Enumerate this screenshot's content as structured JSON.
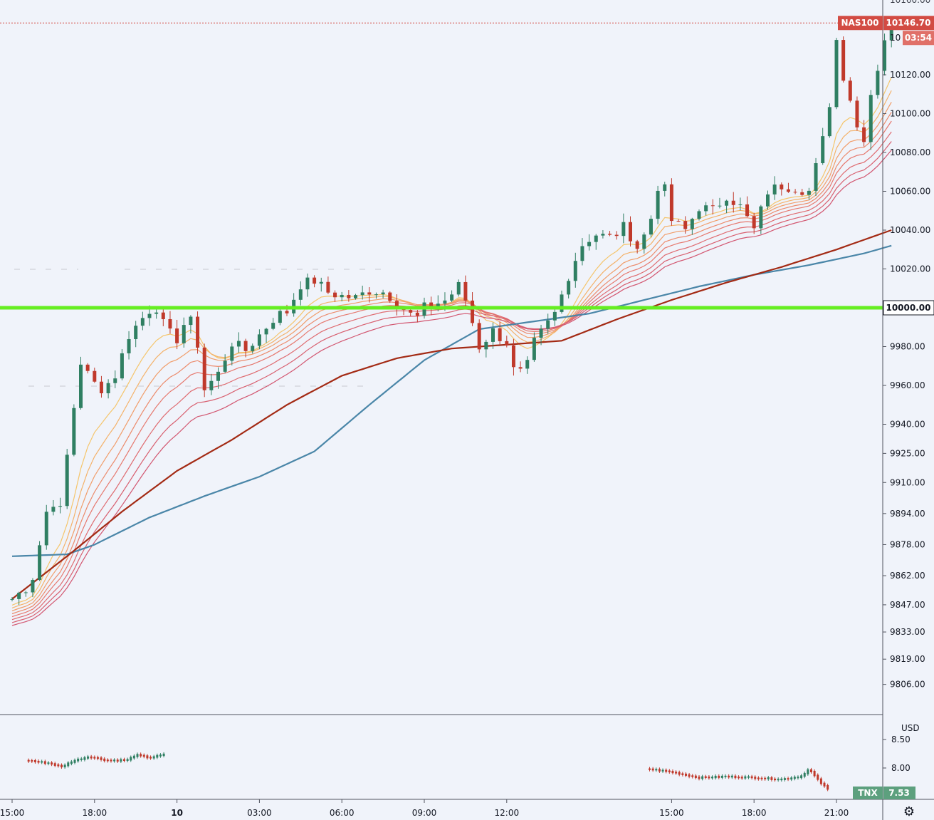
{
  "chart_data": [
    {
      "type": "candlestick",
      "symbol": "NAS100",
      "last_price": "10146.70",
      "countdown": "03:54",
      "price_ticks": [
        "10120.00",
        "10100.00",
        "10080.00",
        "10060.00",
        "10040.00",
        "10020.00",
        "10000.00",
        "9980.00",
        "9960.00",
        "9940.00",
        "9925.00",
        "9910.00",
        "9894.00",
        "9878.00",
        "9862.00",
        "9847.00",
        "9833.00",
        "9819.00",
        "9806.00"
      ],
      "price_tick_values": [
        10120,
        10100,
        10080,
        10060,
        10040,
        10020,
        10000,
        9980,
        9960,
        9940,
        9925,
        9910,
        9894,
        9878,
        9862,
        9847,
        9833,
        9819,
        9806
      ],
      "highlight_tag": "10000.00",
      "highlight_level": 10000,
      "partial_top_label": "10",
      "time_ticks": [
        "15:00",
        "18:00",
        "10",
        "03:00",
        "06:00",
        "09:00",
        "12:00",
        "15:00",
        "18:00",
        "21:00"
      ],
      "time_tick_hours": [
        0,
        3,
        6,
        9,
        12,
        15,
        18,
        24,
        27,
        30
      ],
      "key_prices": [
        {
          "h": 0,
          "p": 9850
        },
        {
          "h": 0.7,
          "p": 9858
        },
        {
          "h": 1,
          "p": 9878
        },
        {
          "h": 1.4,
          "p": 9905
        },
        {
          "h": 1.7,
          "p": 9890
        },
        {
          "h": 2.1,
          "p": 9935
        },
        {
          "h": 2.5,
          "p": 9972
        },
        {
          "h": 2.9,
          "p": 9962
        },
        {
          "h": 3.3,
          "p": 9958
        },
        {
          "h": 3.8,
          "p": 9966
        },
        {
          "h": 4.2,
          "p": 9985
        },
        {
          "h": 4.7,
          "p": 9994
        },
        {
          "h": 5.2,
          "p": 10002
        },
        {
          "h": 5.6,
          "p": 9988
        },
        {
          "h": 6.0,
          "p": 9984
        },
        {
          "h": 6.4,
          "p": 9996
        },
        {
          "h": 6.7,
          "p": 9986
        },
        {
          "h": 7.0,
          "p": 9958
        },
        {
          "h": 7.5,
          "p": 9966
        },
        {
          "h": 8.0,
          "p": 9982
        },
        {
          "h": 8.5,
          "p": 9978
        },
        {
          "h": 9.0,
          "p": 9986
        },
        {
          "h": 9.6,
          "p": 9996
        },
        {
          "h": 10.0,
          "p": 9998
        },
        {
          "h": 10.5,
          "p": 10012
        },
        {
          "h": 11.0,
          "p": 10014
        },
        {
          "h": 11.5,
          "p": 10008
        },
        {
          "h": 12.0,
          "p": 10006
        },
        {
          "h": 12.5,
          "p": 10005
        },
        {
          "h": 13.0,
          "p": 10009
        },
        {
          "h": 13.6,
          "p": 10008
        },
        {
          "h": 14.2,
          "p": 10000
        },
        {
          "h": 14.7,
          "p": 9994
        },
        {
          "h": 15.0,
          "p": 10000
        },
        {
          "h": 15.8,
          "p": 10004
        },
        {
          "h": 16.3,
          "p": 10012
        },
        {
          "h": 16.6,
          "p": 10000
        },
        {
          "h": 17.0,
          "p": 9980
        },
        {
          "h": 17.5,
          "p": 9988
        },
        {
          "h": 18.0,
          "p": 9982
        },
        {
          "h": 18.3,
          "p": 9965
        },
        {
          "h": 18.7,
          "p": 9968
        },
        {
          "h": 19.0,
          "p": 9982
        },
        {
          "h": 19.4,
          "p": 9990
        },
        {
          "h": 19.8,
          "p": 9998
        },
        {
          "h": 20.2,
          "p": 10015
        },
        {
          "h": 20.7,
          "p": 10032
        },
        {
          "h": 21.2,
          "p": 10038
        },
        {
          "h": 21.8,
          "p": 10036
        },
        {
          "h": 22.3,
          "p": 10042
        },
        {
          "h": 22.8,
          "p": 10030
        },
        {
          "h": 23.3,
          "p": 10048
        },
        {
          "h": 23.6,
          "p": 10070
        },
        {
          "h": 24.0,
          "p": 10045
        },
        {
          "h": 24.5,
          "p": 10040
        },
        {
          "h": 25.0,
          "p": 10052
        },
        {
          "h": 25.5,
          "p": 10050
        },
        {
          "h": 26.0,
          "p": 10058
        },
        {
          "h": 26.5,
          "p": 10052
        },
        {
          "h": 27.0,
          "p": 10040
        },
        {
          "h": 27.5,
          "p": 10060
        },
        {
          "h": 28.0,
          "p": 10063
        },
        {
          "h": 28.5,
          "p": 10062
        },
        {
          "h": 29.0,
          "p": 10060
        },
        {
          "h": 29.3,
          "p": 10075
        },
        {
          "h": 29.6,
          "p": 10092
        },
        {
          "h": 29.8,
          "p": 10110
        },
        {
          "h": 30.0,
          "p": 10138
        },
        {
          "h": 30.2,
          "p": 10122
        },
        {
          "h": 30.5,
          "p": 10108
        },
        {
          "h": 30.8,
          "p": 10090
        },
        {
          "h": 31.0,
          "p": 10088
        },
        {
          "h": 31.3,
          "p": 10115
        },
        {
          "h": 31.6,
          "p": 10128
        },
        {
          "h": 31.9,
          "p": 10150
        },
        {
          "h": 32.1,
          "p": 10146.7
        }
      ],
      "ma_slow": [
        {
          "h": 0,
          "p": 9850
        },
        {
          "h": 2,
          "p": 9872
        },
        {
          "h": 4,
          "p": 9895
        },
        {
          "h": 6,
          "p": 9916
        },
        {
          "h": 8,
          "p": 9932
        },
        {
          "h": 10,
          "p": 9950
        },
        {
          "h": 12,
          "p": 9965
        },
        {
          "h": 14,
          "p": 9974
        },
        {
          "h": 16,
          "p": 9979
        },
        {
          "h": 18,
          "p": 9981
        },
        {
          "h": 20,
          "p": 9983
        },
        {
          "h": 22,
          "p": 9994
        },
        {
          "h": 24,
          "p": 10004
        },
        {
          "h": 26,
          "p": 10013
        },
        {
          "h": 28,
          "p": 10021
        },
        {
          "h": 30,
          "p": 10030
        },
        {
          "h": 32,
          "p": 10040
        }
      ],
      "ma_blue": [
        {
          "h": 0,
          "p": 9872
        },
        {
          "h": 2,
          "p": 9873
        },
        {
          "h": 3,
          "p": 9878
        },
        {
          "h": 5,
          "p": 9892
        },
        {
          "h": 7,
          "p": 9903
        },
        {
          "h": 9,
          "p": 9913
        },
        {
          "h": 11,
          "p": 9926
        },
        {
          "h": 13,
          "p": 9950
        },
        {
          "h": 15,
          "p": 9973
        },
        {
          "h": 17,
          "p": 9989
        },
        {
          "h": 19,
          "p": 9993
        },
        {
          "h": 21,
          "p": 9997
        },
        {
          "h": 23,
          "p": 10004
        },
        {
          "h": 25,
          "p": 10011
        },
        {
          "h": 27,
          "p": 10017
        },
        {
          "h": 29,
          "p": 10022
        },
        {
          "h": 31,
          "p": 10028
        },
        {
          "h": 32,
          "p": 10032
        }
      ]
    },
    {
      "type": "candlestick",
      "symbol": "TNX",
      "last_value": "7.53",
      "unit_label": "USD",
      "ticks": [
        "8.50",
        "8.00"
      ],
      "tick_values": [
        8.5,
        8.0
      ],
      "segments": [
        [
          {
            "h": 0.6,
            "v": 8.13
          },
          {
            "h": 1.4,
            "v": 8.08
          },
          {
            "h": 1.8,
            "v": 8.02
          },
          {
            "h": 2.2,
            "v": 8.12
          },
          {
            "h": 2.8,
            "v": 8.2
          },
          {
            "h": 3.5,
            "v": 8.13
          },
          {
            "h": 4.2,
            "v": 8.14
          },
          {
            "h": 4.5,
            "v": 8.23
          },
          {
            "h": 5.0,
            "v": 8.18
          },
          {
            "h": 5.6,
            "v": 8.24
          }
        ],
        [
          {
            "h": 23.2,
            "v": 7.98
          },
          {
            "h": 24.0,
            "v": 7.93
          },
          {
            "h": 25.0,
            "v": 7.83
          },
          {
            "h": 26.0,
            "v": 7.85
          },
          {
            "h": 27.0,
            "v": 7.83
          },
          {
            "h": 28.0,
            "v": 7.8
          },
          {
            "h": 28.7,
            "v": 7.85
          },
          {
            "h": 29.0,
            "v": 7.98
          },
          {
            "h": 29.4,
            "v": 7.75
          },
          {
            "h": 29.7,
            "v": 7.62
          }
        ]
      ]
    }
  ],
  "colors": {
    "background": "#f0f3fa",
    "up_candle": "#2f7f62",
    "down_candle": "#c0392b",
    "ma_slow": "#a32a14",
    "ma_blue": "#4a86a8",
    "ribbon": [
      "#f5c56b",
      "#f4b26a",
      "#f19d6a",
      "#ec8b6c",
      "#e6786e",
      "#df6b70",
      "#d86070",
      "#d25670"
    ],
    "highlight_line": "#66ee22",
    "symbol_tag": "#d24b43",
    "countdown_tag": "#e07068",
    "tnx_tag": "#5da07e"
  },
  "settings_icon": "gear-icon"
}
